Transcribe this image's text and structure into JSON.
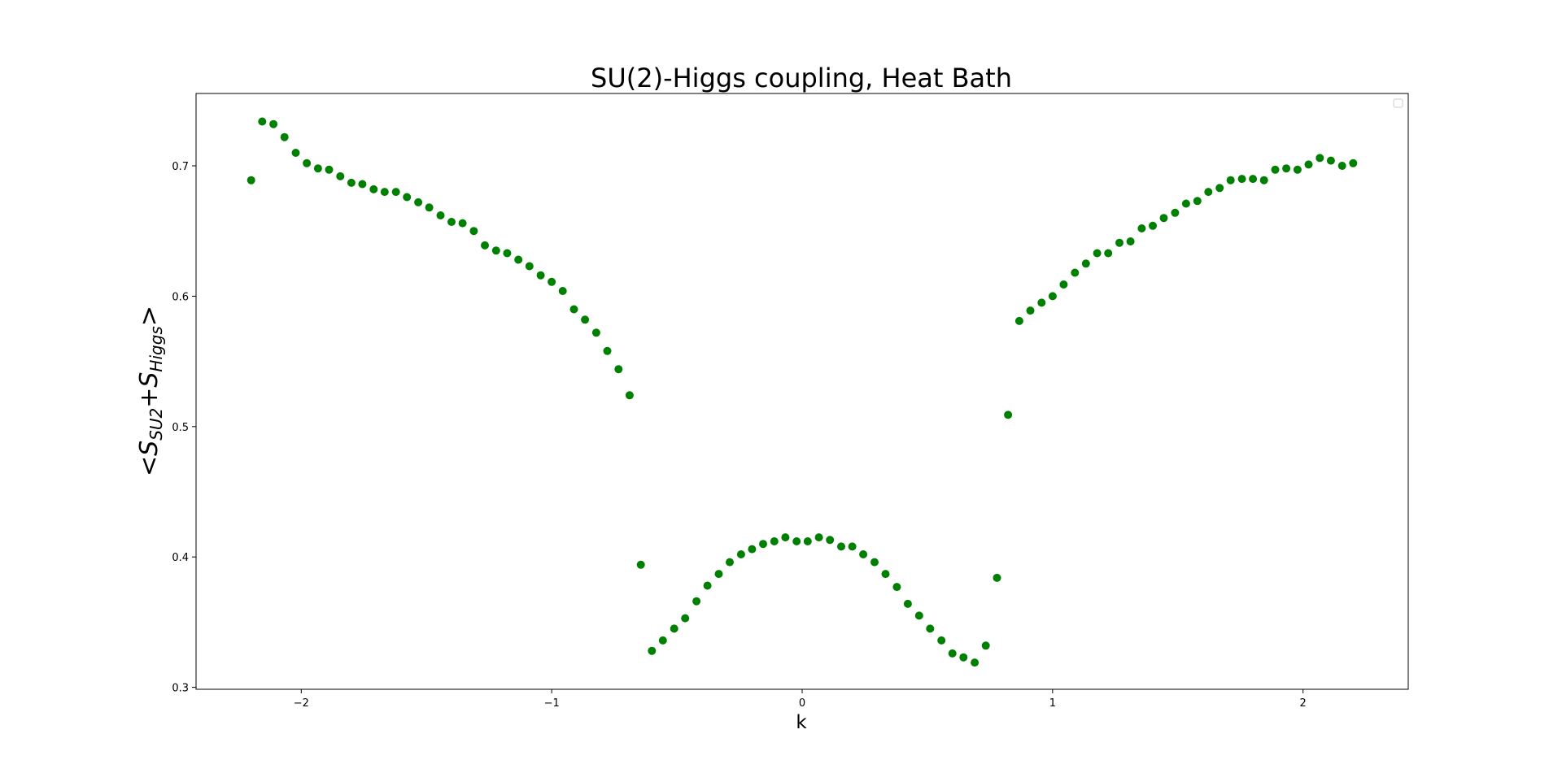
{
  "chart_data": {
    "type": "scatter",
    "title": "SU(2)-Higgs coupling, Heat Bath",
    "xlabel": "k",
    "ylabel": {
      "open": "<",
      "s1_main": "S",
      "s1_sub": "SU2",
      "plus": "+",
      "s2_main": "S",
      "s2_sub": "Higgs",
      "close": ">"
    },
    "xlim": [
      -2.42,
      2.42
    ],
    "ylim": [
      0.2985,
      0.7555
    ],
    "xticks": [
      {
        "value": -2,
        "label": "−2"
      },
      {
        "value": -1,
        "label": "−1"
      },
      {
        "value": 0,
        "label": "0"
      },
      {
        "value": 1,
        "label": "1"
      },
      {
        "value": 2,
        "label": "2"
      }
    ],
    "yticks": [
      {
        "value": 0.3,
        "label": "0.3"
      },
      {
        "value": 0.4,
        "label": "0.4"
      },
      {
        "value": 0.5,
        "label": "0.5"
      },
      {
        "value": 0.6,
        "label": "0.6"
      },
      {
        "value": 0.7,
        "label": "0.7"
      }
    ],
    "grid": false,
    "legend": {
      "placement": "top-right",
      "entries": []
    },
    "marker_color": "#008000",
    "series": [
      {
        "x": [
          -2.2,
          -2.156,
          -2.111,
          -2.067,
          -2.022,
          -1.978,
          -1.933,
          -1.889,
          -1.844,
          -1.8,
          -1.756,
          -1.711,
          -1.667,
          -1.622,
          -1.578,
          -1.533,
          -1.489,
          -1.444,
          -1.4,
          -1.356,
          -1.311,
          -1.267,
          -1.222,
          -1.178,
          -1.133,
          -1.089,
          -1.044,
          -1.0,
          -0.956,
          -0.911,
          -0.867,
          -0.822,
          -0.778,
          -0.733,
          -0.689,
          -0.644,
          -0.6,
          -0.556,
          -0.511,
          -0.467,
          -0.422,
          -0.378,
          -0.333,
          -0.289,
          -0.244,
          -0.2,
          -0.156,
          -0.111,
          -0.067,
          -0.022,
          0.022,
          0.067,
          0.111,
          0.156,
          0.2,
          0.244,
          0.289,
          0.333,
          0.378,
          0.422,
          0.467,
          0.511,
          0.556,
          0.6,
          0.644,
          0.689,
          0.733,
          0.778,
          0.822,
          0.867,
          0.911,
          0.956,
          1.0,
          1.044,
          1.089,
          1.133,
          1.178,
          1.222,
          1.267,
          1.311,
          1.356,
          1.4,
          1.444,
          1.489,
          1.533,
          1.578,
          1.622,
          1.667,
          1.711,
          1.756,
          1.8,
          1.844,
          1.889,
          1.933,
          1.978,
          2.022,
          2.067,
          2.111,
          2.156,
          2.2
        ],
        "y": [
          0.689,
          0.734,
          0.732,
          0.722,
          0.71,
          0.702,
          0.698,
          0.697,
          0.692,
          0.687,
          0.686,
          0.682,
          0.68,
          0.68,
          0.676,
          0.672,
          0.668,
          0.662,
          0.657,
          0.656,
          0.65,
          0.639,
          0.635,
          0.633,
          0.628,
          0.623,
          0.616,
          0.611,
          0.604,
          0.59,
          0.582,
          0.572,
          0.558,
          0.544,
          0.524,
          0.394,
          0.328,
          0.336,
          0.345,
          0.353,
          0.366,
          0.378,
          0.387,
          0.396,
          0.402,
          0.406,
          0.41,
          0.412,
          0.415,
          0.412,
          0.412,
          0.415,
          0.413,
          0.408,
          0.408,
          0.402,
          0.396,
          0.387,
          0.377,
          0.364,
          0.355,
          0.345,
          0.336,
          0.326,
          0.323,
          0.319,
          0.332,
          0.384,
          0.509,
          0.581,
          0.589,
          0.595,
          0.6,
          0.609,
          0.618,
          0.625,
          0.633,
          0.633,
          0.641,
          0.642,
          0.652,
          0.654,
          0.66,
          0.664,
          0.671,
          0.673,
          0.68,
          0.683,
          0.689,
          0.69,
          0.69,
          0.689,
          0.697,
          0.698,
          0.697,
          0.701,
          0.706,
          0.704,
          0.7,
          0.702
        ]
      }
    ]
  }
}
